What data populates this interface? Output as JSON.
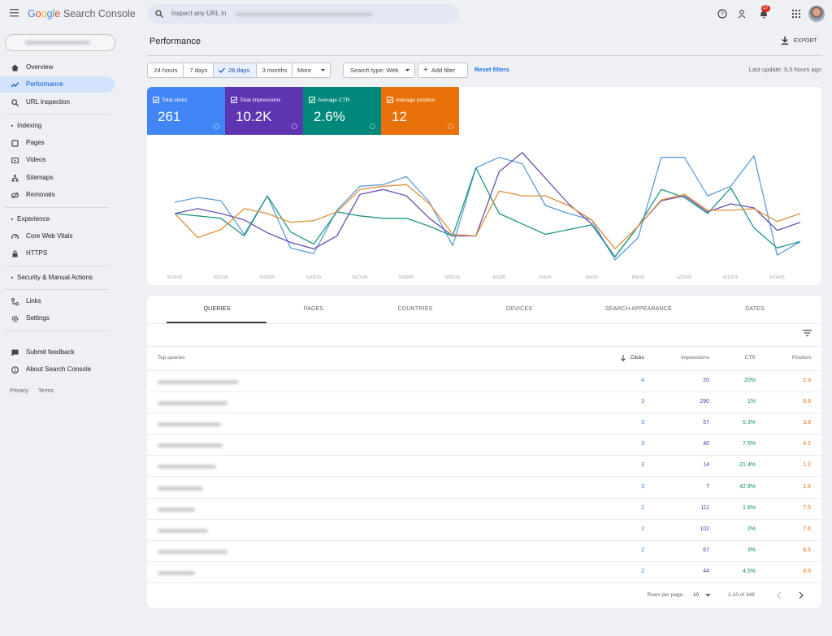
{
  "header": {
    "brand": "Google",
    "product": "Search Console",
    "search_placeholder": "Inspect any URL in",
    "notifications": "27"
  },
  "sidebar": {
    "items": [
      "Overview",
      "Performance",
      "URL inspection"
    ],
    "indexing": {
      "heading": "Indexing",
      "items": [
        "Pages",
        "Videos",
        "Sitemaps",
        "Removals"
      ]
    },
    "experience": {
      "heading": "Experience",
      "items": [
        "Core Web Vitals",
        "HTTPS"
      ]
    },
    "security": {
      "heading": "Security & Manual Actions"
    },
    "tools": [
      "Links",
      "Settings"
    ],
    "support": [
      "Submit feedback",
      "About Search Console"
    ],
    "legal": [
      "Privacy",
      "Terms"
    ]
  },
  "page": {
    "title": "Performance",
    "export": "EXPORT"
  },
  "filters": {
    "ranges": [
      "24 hours",
      "7 days",
      "28 days",
      "3 months",
      "More"
    ],
    "search_type": "Search type: Web",
    "add_filter": "Add filter",
    "reset": "Reset filters",
    "last_update": "Last update: 5.5 hours ago"
  },
  "metrics": [
    {
      "label": "Total clicks",
      "value": "261",
      "color": "#4285f4"
    },
    {
      "label": "Total impressions",
      "value": "10.2K",
      "color": "#5e35b1"
    },
    {
      "label": "Average CTR",
      "value": "2.6%",
      "color": "#00897b"
    },
    {
      "label": "Average position",
      "value": "12",
      "color": "#e8710a"
    }
  ],
  "chart_data": {
    "type": "line",
    "x": [
      "5/19/25",
      null,
      "5/21/25",
      null,
      "5/23/25",
      null,
      "5/25/25",
      null,
      "5/27/25",
      null,
      "5/29/25",
      null,
      "5/31/25",
      null,
      "6/2/25",
      null,
      "6/4/25",
      null,
      "6/6/25",
      null,
      "6/8/25",
      null,
      "6/10/25",
      null,
      "6/12/25",
      null,
      "6/14/25",
      null
    ],
    "ylim": [
      0,
      160
    ],
    "series": [
      {
        "name": "Total clicks",
        "color": "#5c9fd8",
        "values": [
          82,
          88,
          84,
          42,
          90,
          25,
          18,
          72,
          102,
          104,
          114,
          82,
          28,
          125,
          138,
          130,
          78,
          68,
          60,
          10,
          38,
          138,
          138,
          90,
          102,
          140,
          16,
          33
        ]
      },
      {
        "name": "Total impressions",
        "color": "#6a4fb0",
        "values": [
          68,
          74,
          68,
          60,
          44,
          32,
          24,
          40,
          92,
          98,
          90,
          62,
          40,
          40,
          120,
          144,
          112,
          80,
          55,
          14,
          52,
          84,
          90,
          70,
          80,
          75,
          47,
          57
        ]
      },
      {
        "name": "Average CTR",
        "color": "#1e9584",
        "values": [
          68,
          65,
          62,
          40,
          90,
          45,
          30,
          70,
          65,
          62,
          62,
          52,
          40,
          125,
          68,
          55,
          42,
          48,
          54,
          14,
          52,
          98,
          88,
          68,
          100,
          50,
          25,
          33
        ]
      },
      {
        "name": "Average position",
        "color": "#e0913a",
        "values": [
          68,
          38,
          48,
          74,
          68,
          57,
          59,
          70,
          98,
          102,
          104,
          80,
          42,
          40,
          96,
          90,
          90,
          78,
          60,
          24,
          52,
          85,
          92,
          72,
          72,
          74,
          58,
          68
        ]
      }
    ]
  },
  "tabs": [
    "QUERIES",
    "PAGES",
    "COUNTRIES",
    "DEVICES",
    "SEARCH APPEARANCE",
    "DATES"
  ],
  "table": {
    "columns": [
      "Top queries",
      "Clicks",
      "Impressions",
      "CTR",
      "Position"
    ],
    "rows": [
      [
        4,
        20,
        "20%",
        2.8
      ],
      [
        3,
        290,
        "1%",
        8.8
      ],
      [
        3,
        57,
        "5.3%",
        3.9
      ],
      [
        3,
        40,
        "7.5%",
        4.2
      ],
      [
        3,
        14,
        "21.4%",
        1.2
      ],
      [
        3,
        7,
        "42.9%",
        1.6
      ],
      [
        2,
        111,
        "1.8%",
        7.5
      ],
      [
        2,
        102,
        "2%",
        7.6
      ],
      [
        2,
        67,
        "3%",
        8.5
      ],
      [
        2,
        44,
        "4.5%",
        8.8
      ]
    ]
  },
  "pagination": {
    "rows_label": "Rows per page:",
    "rows_value": "10",
    "range": "1-10 of 348"
  }
}
